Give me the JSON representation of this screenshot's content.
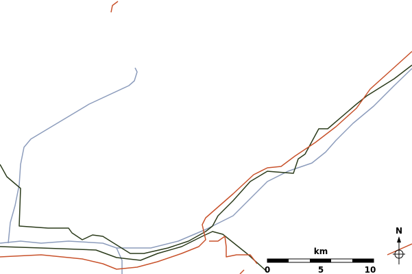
{
  "scale": {
    "unit": "km",
    "ticks": [
      0,
      5,
      10
    ]
  },
  "compass": {
    "label": "N"
  }
}
